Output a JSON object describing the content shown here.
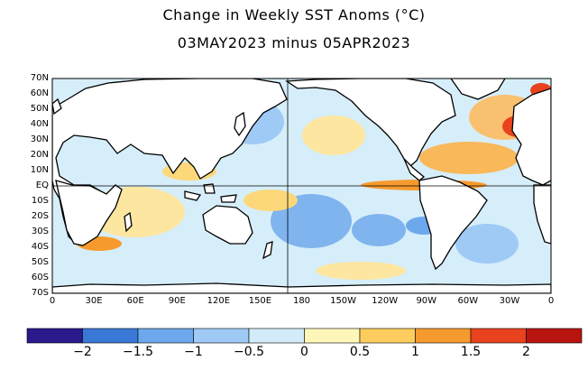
{
  "title": "Change in Weekly SST Anoms (°C)",
  "subtitle": "03MAY2023 minus 05APR2023",
  "lat_labels": [
    "70N",
    "60N",
    "50N",
    "40N",
    "30N",
    "20N",
    "10N",
    "EQ",
    "10S",
    "20S",
    "30S",
    "40S",
    "50S",
    "60S",
    "70S"
  ],
  "lon_labels": [
    "0",
    "30E",
    "60E",
    "90E",
    "120E",
    "150E",
    "180",
    "150W",
    "120W",
    "90W",
    "60W",
    "30W",
    "0"
  ],
  "colorbar": {
    "ticks": [
      "−2",
      "−1.5",
      "−1",
      "−0.5",
      "0",
      "0.5",
      "1",
      "1.5",
      "2"
    ],
    "colors": [
      "#2a1a8c",
      "#3a78d8",
      "#6ea8ec",
      "#9fcaf6",
      "#d2ecfa",
      "#fdf6b8",
      "#fccd5e",
      "#f79a2e",
      "#e8421e",
      "#b81410"
    ]
  }
}
